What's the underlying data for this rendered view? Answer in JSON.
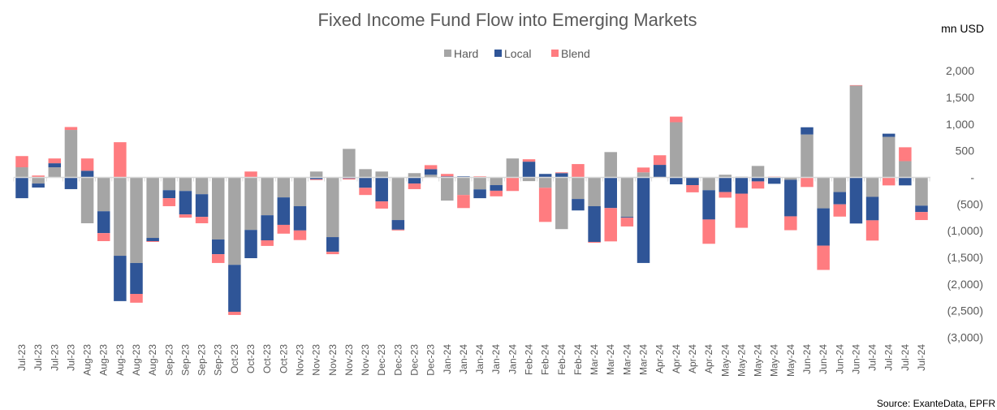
{
  "chart_data": {
    "type": "bar",
    "stacked": true,
    "title": "Fixed Income Fund Flow into Emerging Markets",
    "unit_label": "mn USD",
    "source": "Source: ExanteData, EPFR",
    "legend_position": "top",
    "grid": false,
    "ylim": [
      -3000,
      2000
    ],
    "yticks": [
      2000,
      1500,
      1000,
      500,
      0,
      -500,
      -1000,
      -1500,
      -2000,
      -2500,
      -3000
    ],
    "ytick_labels": [
      "2,000",
      "1,500",
      "1,000",
      "500",
      "-",
      "(500)",
      "(1,000)",
      "(1,500)",
      "(2,000)",
      "(2,500)",
      "(3,000)"
    ],
    "categories": [
      "Jul-23",
      "Jul-23",
      "Jul-23",
      "Jul-23",
      "Aug-23",
      "Aug-23",
      "Aug-23",
      "Aug-23",
      "Aug-23",
      "Sep-23",
      "Sep-23",
      "Sep-23",
      "Sep-23",
      "Oct-23",
      "Oct-23",
      "Oct-23",
      "Oct-23",
      "Nov-23",
      "Nov-23",
      "Nov-23",
      "Nov-23",
      "Nov-23",
      "Dec-23",
      "Dec-23",
      "Dec-23",
      "Dec-23",
      "Jan-24",
      "Jan-24",
      "Jan-24",
      "Jan-24",
      "Jan-24",
      "Feb-24",
      "Feb-24",
      "Feb-24",
      "Feb-24",
      "Mar-24",
      "Mar-24",
      "Mar-24",
      "Mar-24",
      "Apr-24",
      "Apr-24",
      "Apr-24",
      "Apr-24",
      "May-24",
      "May-24",
      "May-24",
      "May-24",
      "May-24",
      "Jun-24",
      "Jun-24",
      "Jun-24",
      "Jun-24",
      "Jul-24",
      "Jul-24",
      "Jul-24",
      "Jul-24"
    ],
    "series": [
      {
        "name": "Hard",
        "color": "#A5A5A5",
        "values": [
          190,
          -115,
          190,
          890,
          -860,
          -635,
          -1470,
          -1605,
          -1135,
          -240,
          -255,
          -315,
          -1165,
          -1640,
          -985,
          -710,
          -375,
          -540,
          110,
          -1120,
          535,
          155,
          110,
          -800,
          80,
          50,
          -435,
          -330,
          -225,
          -145,
          355,
          -70,
          -195,
          -970,
          -405,
          -540,
          475,
          -740,
          95,
          0,
          1035,
          0,
          -240,
          50,
          15,
          215,
          0,
          -45,
          805,
          -580,
          -275,
          1720,
          -365,
          760,
          305,
          -530
        ]
      },
      {
        "name": "Local",
        "color": "#2F5597",
        "values": [
          -390,
          -75,
          75,
          -220,
          125,
          -410,
          -850,
          -580,
          -60,
          -150,
          -440,
          -425,
          -275,
          -880,
          -530,
          -470,
          -515,
          -455,
          -35,
          -275,
          -20,
          -195,
          -450,
          -180,
          -115,
          105,
          20,
          20,
          -165,
          -105,
          0,
          295,
          65,
          80,
          -215,
          -670,
          -575,
          -15,
          -1605,
          235,
          -130,
          -145,
          -550,
          -275,
          -305,
          -75,
          -120,
          -685,
          135,
          -700,
          -230,
          -865,
          -440,
          60,
          -150,
          -120
        ]
      },
      {
        "name": "Blend",
        "color": "#FF7C80",
        "values": [
          210,
          35,
          90,
          55,
          230,
          -150,
          660,
          -165,
          -15,
          -150,
          -60,
          -120,
          -165,
          -60,
          110,
          -105,
          -165,
          -180,
          -15,
          -45,
          -20,
          -135,
          -135,
          -15,
          -105,
          75,
          45,
          -245,
          20,
          -105,
          -255,
          45,
          -640,
          15,
          250,
          -15,
          -625,
          -165,
          90,
          180,
          105,
          -135,
          -455,
          -105,
          -640,
          -135,
          15,
          -260,
          -180,
          -455,
          -230,
          10,
          -380,
          -150,
          260,
          -150
        ]
      }
    ]
  }
}
